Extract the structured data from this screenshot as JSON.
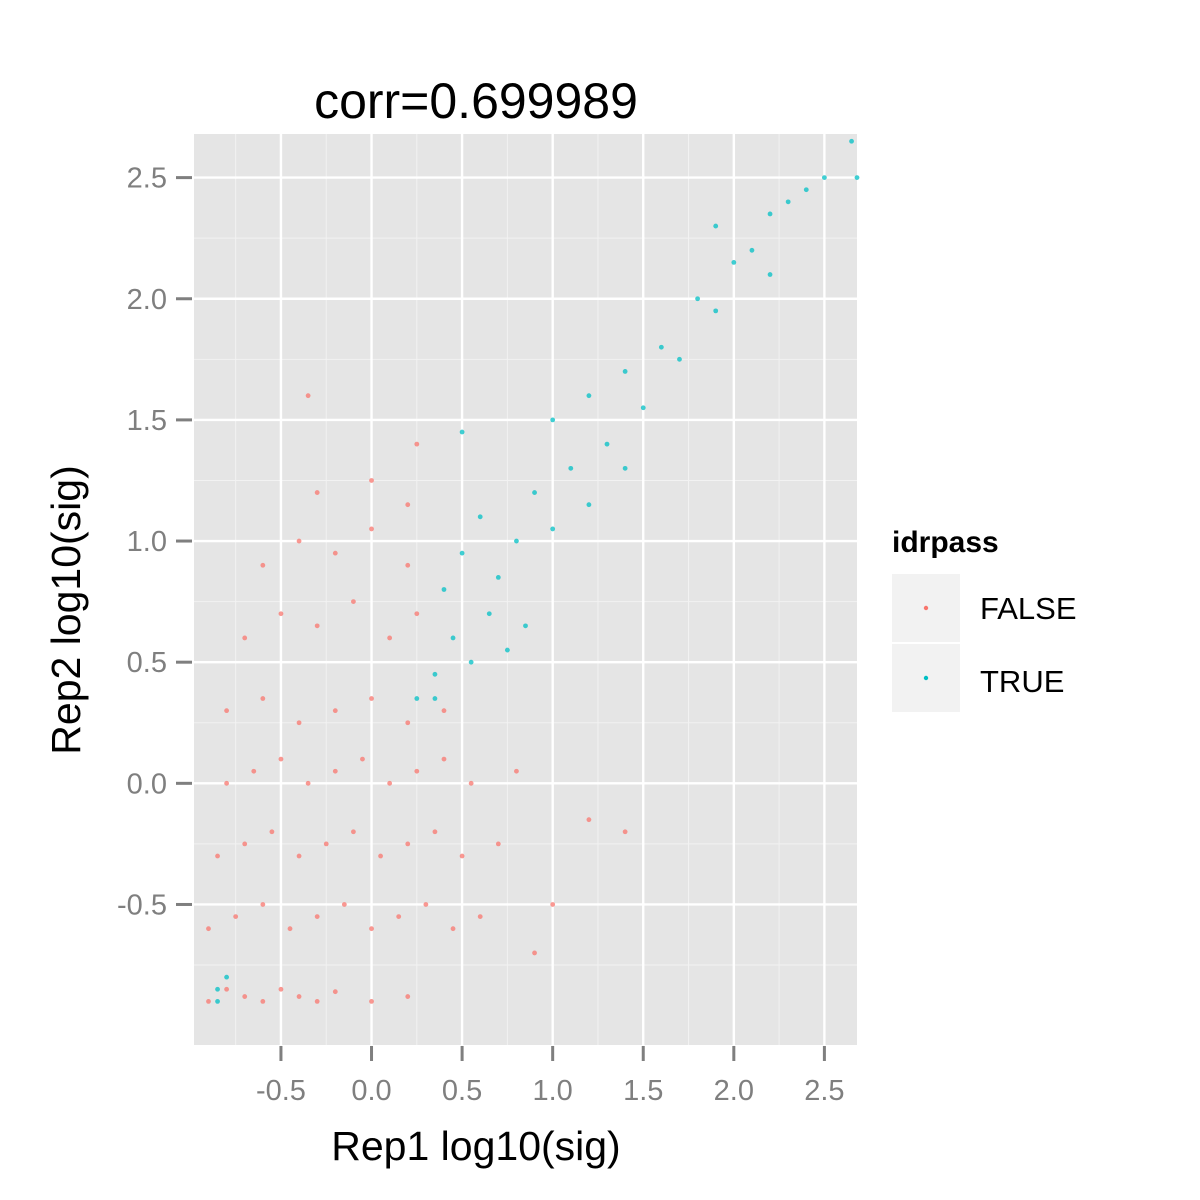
{
  "chart_data": {
    "type": "scatter",
    "title": "corr=0.699989",
    "xlabel": "Rep1 log10(sig)",
    "ylabel": "Rep2 log10(sig)",
    "xlim": [
      -0.98,
      2.68
    ],
    "ylim": [
      -1.08,
      2.68
    ],
    "x_ticks": [
      -0.5,
      0.0,
      0.5,
      1.0,
      1.5,
      2.0,
      2.5
    ],
    "x_tick_labels": [
      "-0.5",
      "0.0",
      "0.5",
      "1.0",
      "1.5",
      "2.0",
      "2.5"
    ],
    "y_ticks": [
      -0.5,
      0.0,
      0.5,
      1.0,
      1.5,
      2.0,
      2.5
    ],
    "y_tick_labels": [
      "-0.5",
      "0.0",
      "0.5",
      "1.0",
      "1.5",
      "2.0",
      "2.5"
    ],
    "grid": true,
    "legend": {
      "title": "idrpass",
      "position": "right",
      "entries": [
        {
          "label": "FALSE",
          "color": "#F8766D"
        },
        {
          "label": "TRUE",
          "color": "#00BFC4"
        }
      ]
    },
    "series": [
      {
        "name": "FALSE",
        "color": "#F8766D",
        "points": [
          [
            -0.9,
            -0.9
          ],
          [
            -0.8,
            -0.85
          ],
          [
            -0.7,
            -0.88
          ],
          [
            -0.6,
            -0.9
          ],
          [
            -0.5,
            -0.85
          ],
          [
            -0.4,
            -0.88
          ],
          [
            -0.3,
            -0.9
          ],
          [
            -0.2,
            -0.86
          ],
          [
            0.0,
            -0.9
          ],
          [
            0.2,
            -0.88
          ],
          [
            -0.9,
            -0.6
          ],
          [
            -0.75,
            -0.55
          ],
          [
            -0.6,
            -0.5
          ],
          [
            -0.45,
            -0.6
          ],
          [
            -0.3,
            -0.55
          ],
          [
            -0.15,
            -0.5
          ],
          [
            0.0,
            -0.6
          ],
          [
            0.15,
            -0.55
          ],
          [
            0.3,
            -0.5
          ],
          [
            0.45,
            -0.6
          ],
          [
            0.6,
            -0.55
          ],
          [
            -0.85,
            -0.3
          ],
          [
            -0.7,
            -0.25
          ],
          [
            -0.55,
            -0.2
          ],
          [
            -0.4,
            -0.3
          ],
          [
            -0.25,
            -0.25
          ],
          [
            -0.1,
            -0.2
          ],
          [
            0.05,
            -0.3
          ],
          [
            0.2,
            -0.25
          ],
          [
            0.35,
            -0.2
          ],
          [
            0.5,
            -0.3
          ],
          [
            0.7,
            -0.25
          ],
          [
            -0.8,
            0.0
          ],
          [
            -0.65,
            0.05
          ],
          [
            -0.5,
            0.1
          ],
          [
            -0.35,
            0.0
          ],
          [
            -0.2,
            0.05
          ],
          [
            -0.05,
            0.1
          ],
          [
            0.1,
            0.0
          ],
          [
            0.25,
            0.05
          ],
          [
            0.4,
            0.1
          ],
          [
            0.55,
            0.0
          ],
          [
            0.8,
            0.05
          ],
          [
            -0.8,
            0.3
          ],
          [
            -0.6,
            0.35
          ],
          [
            -0.4,
            0.25
          ],
          [
            -0.2,
            0.3
          ],
          [
            0.0,
            0.35
          ],
          [
            0.2,
            0.25
          ],
          [
            0.4,
            0.3
          ],
          [
            -0.7,
            0.6
          ],
          [
            -0.5,
            0.7
          ],
          [
            -0.3,
            0.65
          ],
          [
            -0.1,
            0.75
          ],
          [
            0.1,
            0.6
          ],
          [
            0.25,
            0.7
          ],
          [
            -0.6,
            0.9
          ],
          [
            -0.4,
            1.0
          ],
          [
            -0.2,
            0.95
          ],
          [
            0.0,
            1.05
          ],
          [
            0.2,
            0.9
          ],
          [
            -0.3,
            1.2
          ],
          [
            0.0,
            1.25
          ],
          [
            0.2,
            1.15
          ],
          [
            0.25,
            1.4
          ],
          [
            -0.35,
            1.6
          ],
          [
            1.0,
            -0.5
          ],
          [
            1.2,
            -0.15
          ],
          [
            1.4,
            -0.2
          ],
          [
            0.9,
            -0.7
          ]
        ]
      },
      {
        "name": "TRUE",
        "color": "#00BFC4",
        "points": [
          [
            -0.85,
            -0.85
          ],
          [
            -0.8,
            -0.8
          ],
          [
            -0.85,
            -0.9
          ],
          [
            0.35,
            0.45
          ],
          [
            0.45,
            0.6
          ],
          [
            0.55,
            0.5
          ],
          [
            0.65,
            0.7
          ],
          [
            0.75,
            0.55
          ],
          [
            0.85,
            0.65
          ],
          [
            0.4,
            0.8
          ],
          [
            0.5,
            0.95
          ],
          [
            0.6,
            1.1
          ],
          [
            0.7,
            0.85
          ],
          [
            0.8,
            1.0
          ],
          [
            0.9,
            1.2
          ],
          [
            1.0,
            1.05
          ],
          [
            1.1,
            1.3
          ],
          [
            1.2,
            1.15
          ],
          [
            1.3,
            1.4
          ],
          [
            1.4,
            1.3
          ],
          [
            1.0,
            1.5
          ],
          [
            1.2,
            1.6
          ],
          [
            1.4,
            1.7
          ],
          [
            1.5,
            1.55
          ],
          [
            1.6,
            1.8
          ],
          [
            1.7,
            1.75
          ],
          [
            1.8,
            2.0
          ],
          [
            1.9,
            1.95
          ],
          [
            2.0,
            2.15
          ],
          [
            2.1,
            2.2
          ],
          [
            2.2,
            2.35
          ],
          [
            2.3,
            2.4
          ],
          [
            2.4,
            2.45
          ],
          [
            2.5,
            2.5
          ],
          [
            2.2,
            2.1
          ],
          [
            1.9,
            2.3
          ],
          [
            0.5,
            1.45
          ],
          [
            0.25,
            0.35
          ],
          [
            0.35,
            0.35
          ],
          [
            2.65,
            2.65
          ],
          [
            2.68,
            2.5
          ]
        ]
      }
    ]
  }
}
